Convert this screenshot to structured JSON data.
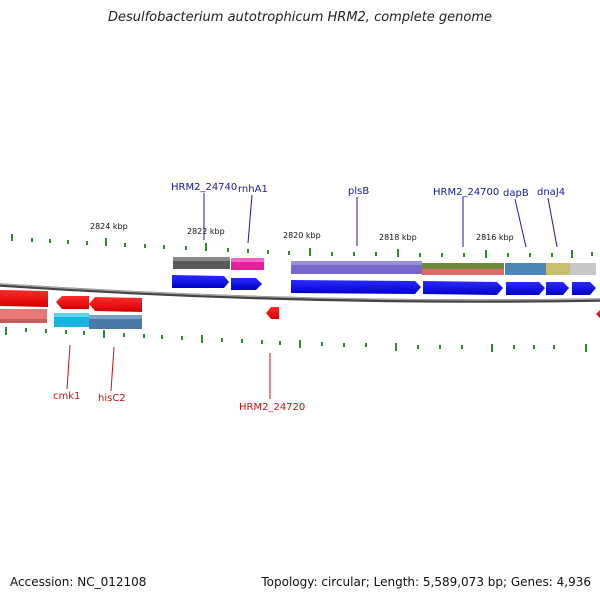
{
  "title": "Desulfobacterium autotrophicum HRM2, complete genome",
  "footer": {
    "accession": "Accession: NC_012108",
    "summary": "Topology: circular; Length: 5,589,073 bp; Genes: 4,936"
  },
  "scale_labels": [
    "2824 kbp",
    "2822 kbp",
    "2820 kbp",
    "2818 kbp",
    "2816 kbp"
  ],
  "forward_labels": [
    "HRM2_24740",
    "rnhA1",
    "plsB",
    "HRM2_24700",
    "dapB",
    "dnaJ4"
  ],
  "reverse_labels": [
    "cmk1",
    "hisC2",
    "HRM2_24720"
  ],
  "colors": {
    "forward_label": "#1a1aa0",
    "reverse_label": "#cc1111",
    "gene_forward": "#0000ee",
    "gene_reverse": "#ee1111",
    "tick": "#2f8a2f",
    "backbone": "#777777"
  }
}
